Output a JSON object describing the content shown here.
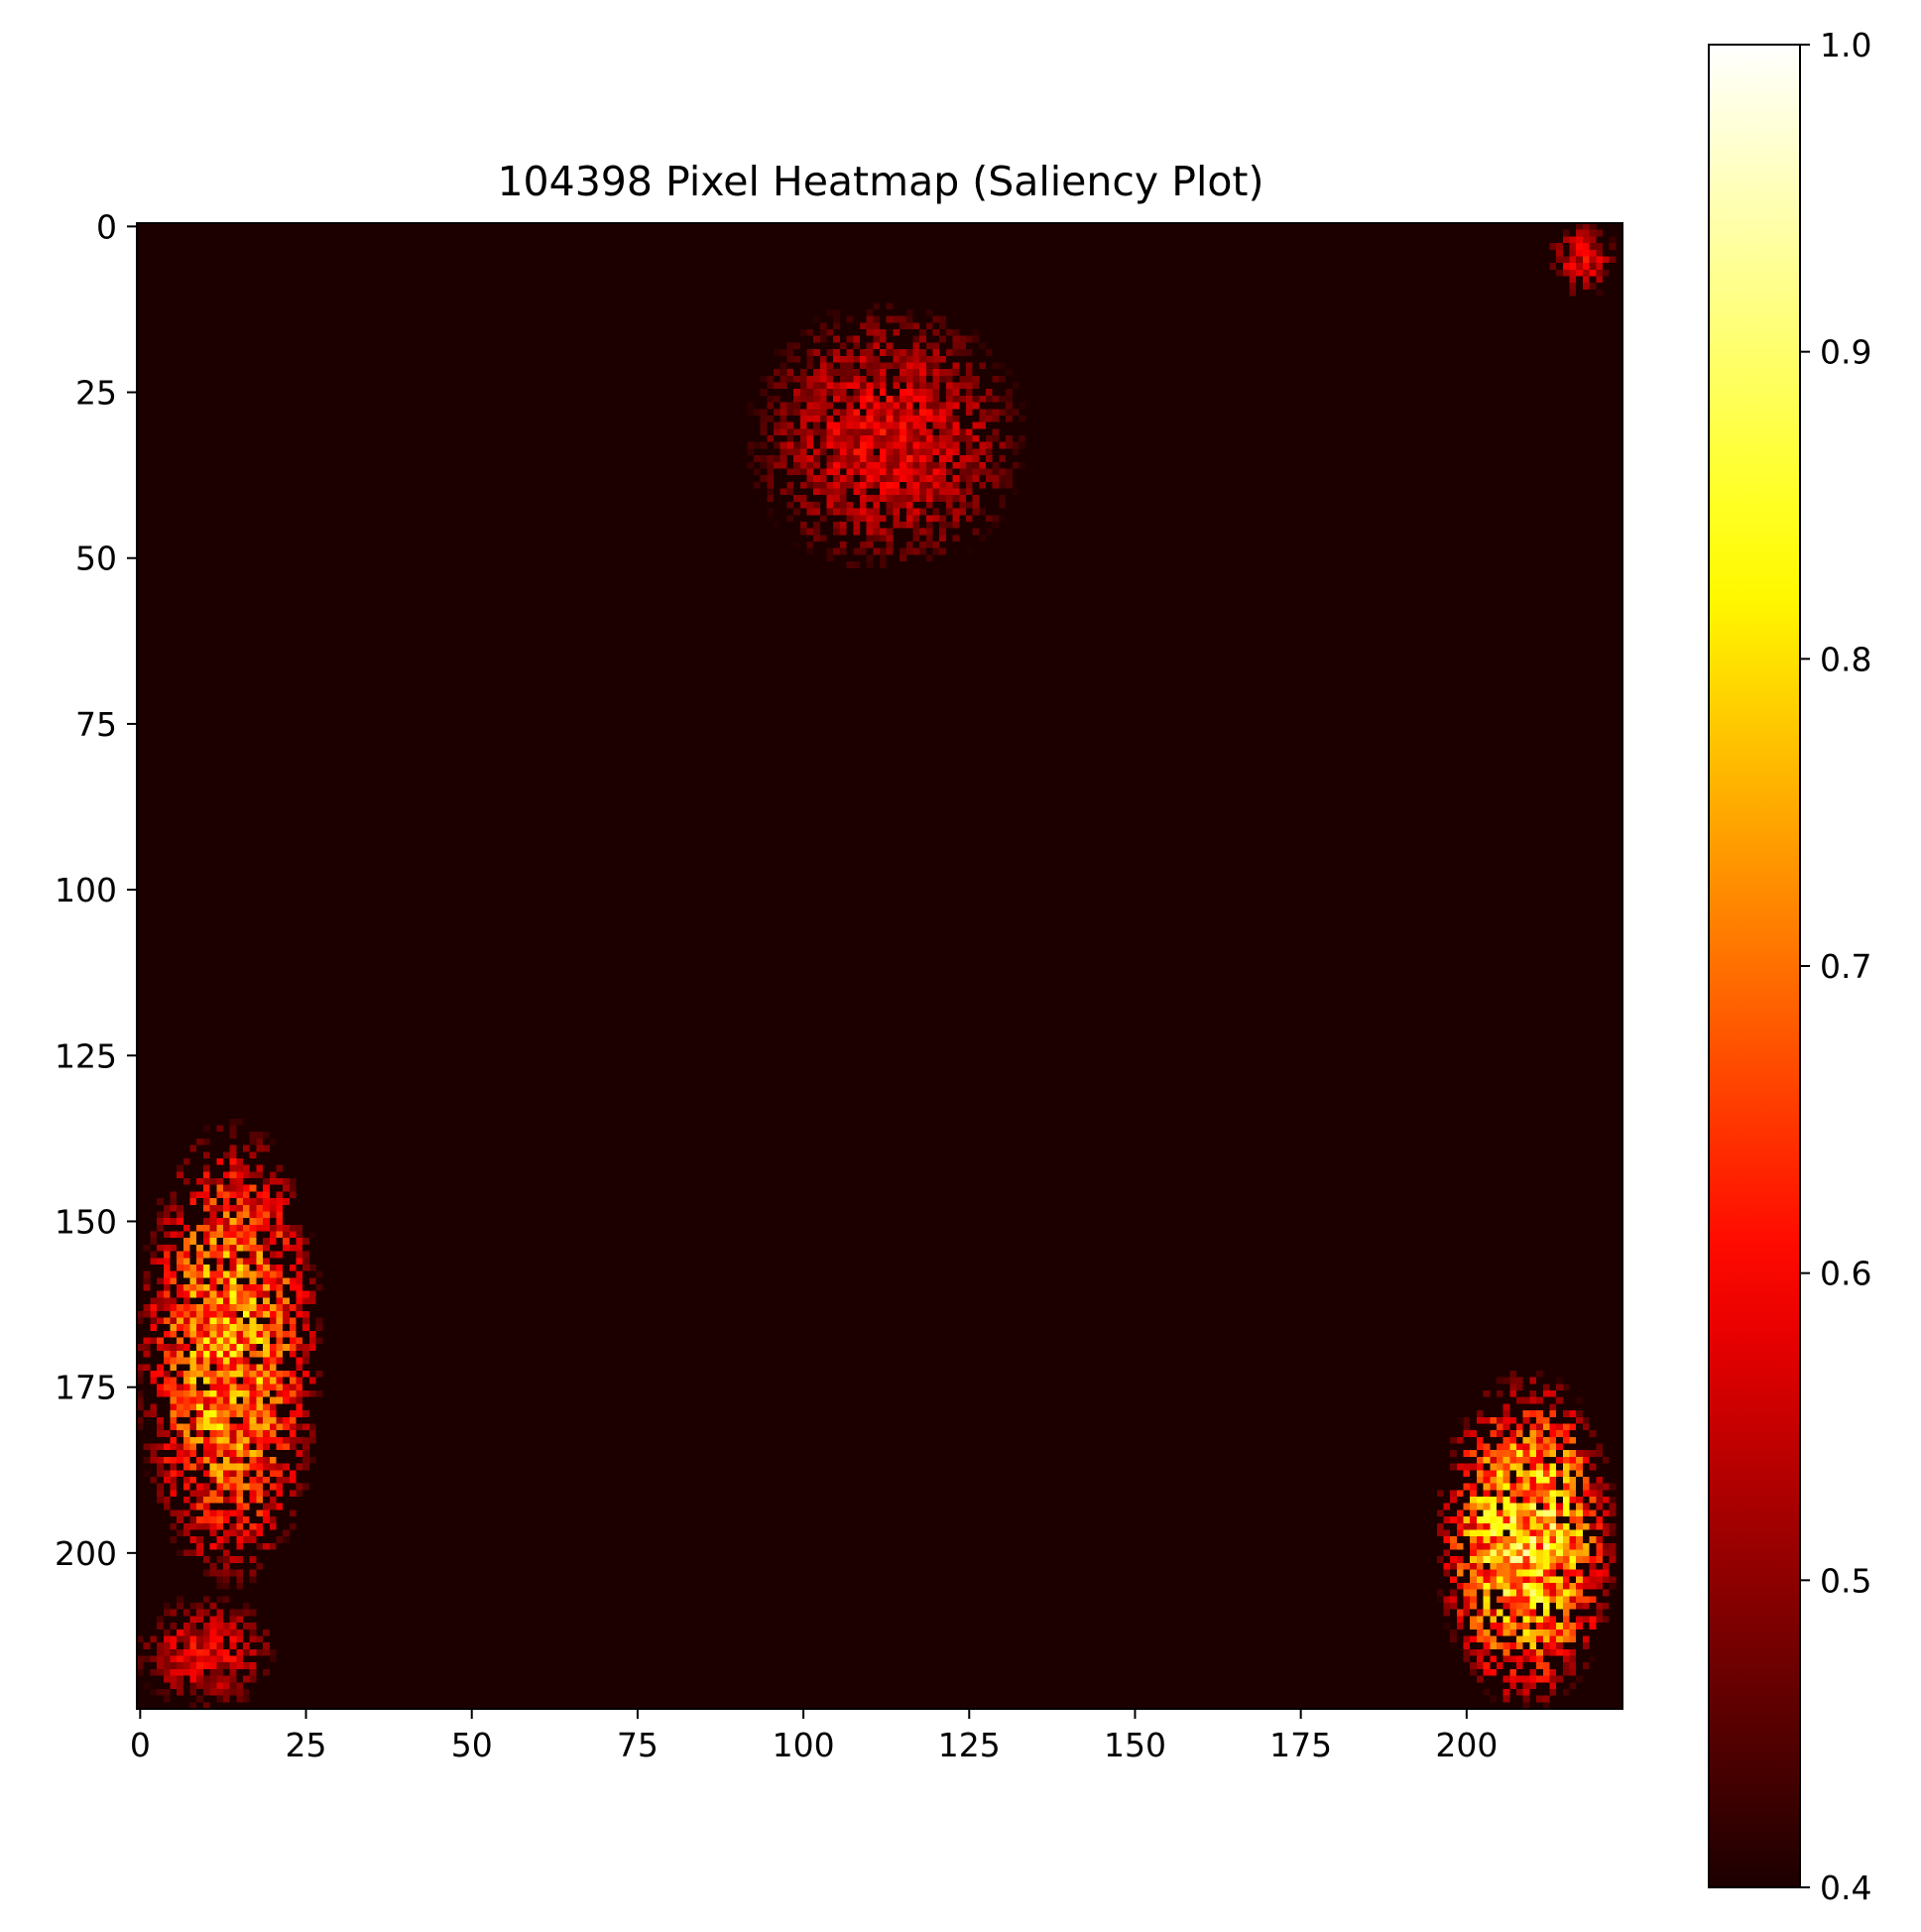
{
  "chart_data": {
    "type": "heatmap",
    "title": "104398 Pixel Heatmap (Saliency Plot)",
    "xlabel": "",
    "ylabel": "",
    "grid_size": [
      224,
      224
    ],
    "x_ticks": [
      0,
      25,
      50,
      75,
      100,
      125,
      150,
      175,
      200
    ],
    "y_ticks": [
      0,
      25,
      50,
      75,
      100,
      125,
      150,
      175,
      200
    ],
    "x_tick_labels": [
      "0",
      "25",
      "50",
      "75",
      "100",
      "125",
      "150",
      "175",
      "200"
    ],
    "y_tick_labels": [
      "0",
      "25",
      "50",
      "75",
      "100",
      "125",
      "150",
      "175",
      "200"
    ],
    "x_range": [
      -0.5,
      223.5
    ],
    "y_range": [
      -0.5,
      223.5
    ],
    "y_inverted": true,
    "colormap": "hot",
    "colorbar": {
      "range": [
        0.4,
        1.0
      ],
      "ticks": [
        0.4,
        0.5,
        0.6,
        0.7,
        0.8,
        0.9,
        1.0
      ],
      "tick_labels": [
        "0.4",
        "0.5",
        "0.6",
        "0.7",
        "0.8",
        "0.9",
        "1.0"
      ],
      "placement": "right"
    },
    "background_value": 0.4,
    "hot_regions": [
      {
        "x_range": [
          0,
          27
        ],
        "y_range": [
          135,
          205
        ],
        "peak": 0.86
      },
      {
        "x_range": [
          0,
          20
        ],
        "y_range": [
          207,
          223
        ],
        "peak": 0.64
      },
      {
        "x_range": [
          92,
          133
        ],
        "y_range": [
          12,
          52
        ],
        "peak": 0.63
      },
      {
        "x_range": [
          196,
          222
        ],
        "y_range": [
          173,
          223
        ],
        "peak": 0.95
      },
      {
        "x_range": [
          213,
          222
        ],
        "y_range": [
          0,
          10
        ],
        "peak": 0.63
      }
    ]
  }
}
